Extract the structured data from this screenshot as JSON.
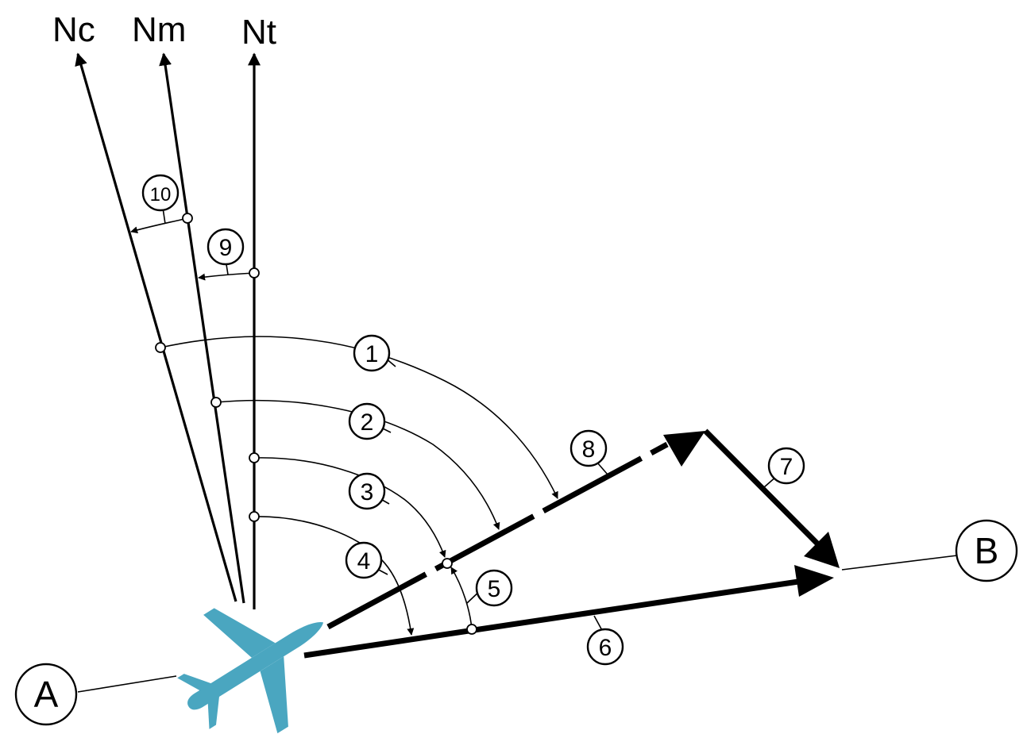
{
  "north_labels": {
    "compass": "Nc",
    "magnetic": "Nm",
    "true": "Nt"
  },
  "points": {
    "start": "A",
    "end": "B"
  },
  "markers": [
    "1",
    "2",
    "3",
    "4",
    "5",
    "6",
    "7",
    "8",
    "9",
    "10"
  ],
  "colors": {
    "aircraft": "#4aa6c0",
    "lines": "#000000"
  },
  "icons": {
    "aircraft": "airplane-icon"
  }
}
